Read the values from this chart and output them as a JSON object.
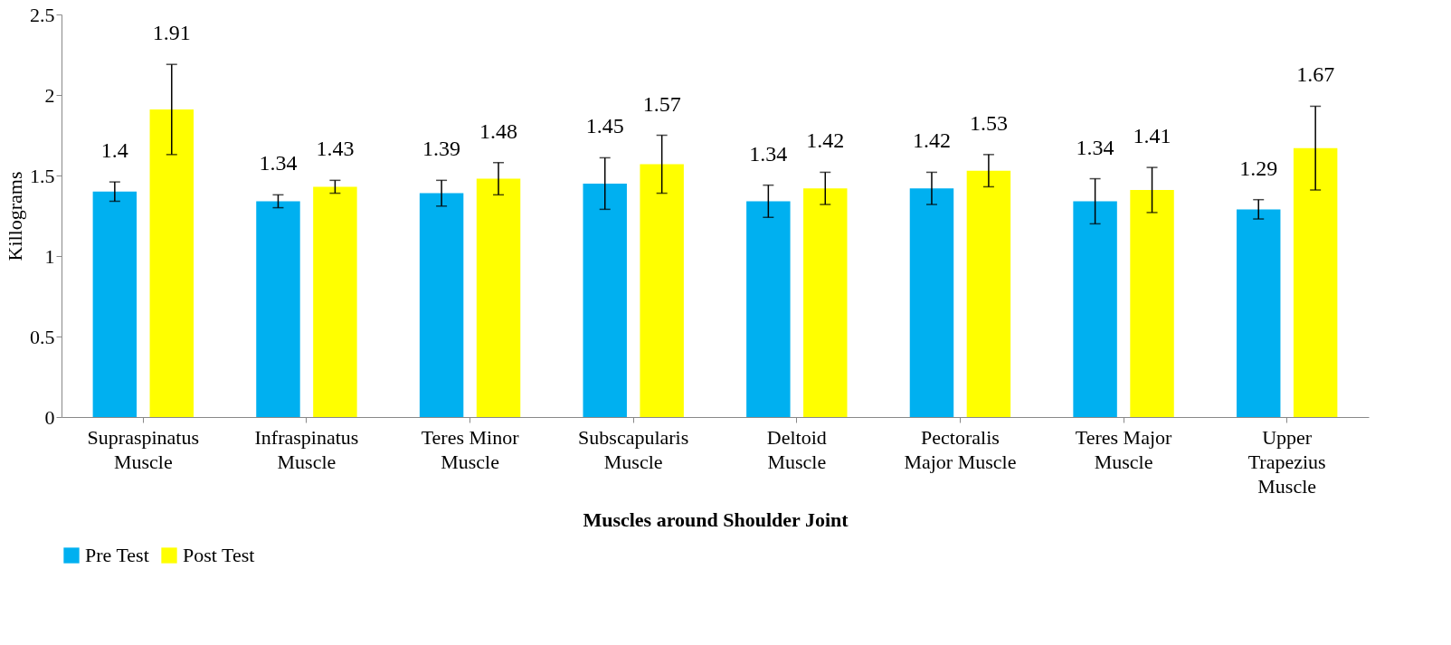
{
  "chart_data": {
    "type": "bar",
    "xlabel": "Muscles around Shoulder Joint",
    "ylabel": "Killograms",
    "categories": [
      "Supraspinatus\nMuscle",
      "Infraspinatus\nMuscle",
      "Teres Minor\nMuscle",
      "Subscapularis\nMuscle",
      "Deltoid\nMuscle",
      "Pectoralis\nMajor Muscle",
      "Teres Major\nMuscle",
      "Upper\nTrapezius\nMuscle"
    ],
    "series": [
      {
        "name": "Pre Test",
        "color": "#00b0f0",
        "values": [
          1.4,
          1.34,
          1.39,
          1.45,
          1.34,
          1.42,
          1.34,
          1.29
        ],
        "errors": [
          0.06,
          0.04,
          0.08,
          0.16,
          0.1,
          0.1,
          0.14,
          0.06
        ]
      },
      {
        "name": "Post Test",
        "color": "#ffff00",
        "values": [
          1.91,
          1.43,
          1.48,
          1.57,
          1.42,
          1.53,
          1.41,
          1.67
        ],
        "errors": [
          0.28,
          0.04,
          0.1,
          0.18,
          0.1,
          0.1,
          0.14,
          0.26
        ]
      }
    ],
    "ylim": [
      0,
      2.5
    ],
    "yticks": [
      0,
      0.5,
      1,
      1.5,
      2,
      2.5
    ],
    "data_labels": true,
    "legend": "bottom",
    "grid": false
  }
}
